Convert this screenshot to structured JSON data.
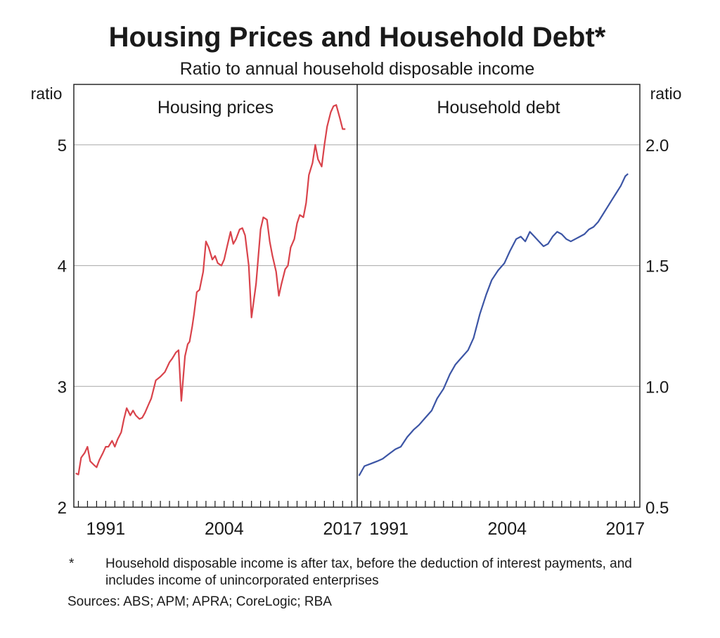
{
  "chart": {
    "title": "Housing Prices and Household Debt*",
    "subtitle": "Ratio to annual household disposable income",
    "left_unit": "ratio",
    "right_unit": "ratio"
  },
  "notes": {
    "marker": "*",
    "footnote": "Household disposable income is after tax, before the deduction of interest payments, and includes income of unincorporated enterprises",
    "sources": "Sources: ABS; APM; APRA; CoreLogic; RBA"
  },
  "chart_data": [
    {
      "type": "line",
      "panel_title": "Housing prices",
      "axis_label": "ratio",
      "axis_side": "left",
      "ylim": [
        2,
        5.5
      ],
      "yticks": [
        2,
        3,
        4,
        5
      ],
      "ytick_labels": [
        "2",
        "3",
        "4",
        "5"
      ],
      "xlim": [
        1987.5,
        2018.6
      ],
      "xtick_values": [
        1991,
        2004,
        2017
      ],
      "xtick_labels": [
        "1991",
        "2004",
        "2017"
      ],
      "grid": true,
      "color": "#d9434b",
      "x": [
        1987.7,
        1988.0,
        1988.3,
        1988.7,
        1989.0,
        1989.3,
        1989.7,
        1990.0,
        1990.3,
        1990.7,
        1991.0,
        1991.3,
        1991.7,
        1992.0,
        1992.3,
        1992.7,
        1993.0,
        1993.3,
        1993.7,
        1994.0,
        1994.3,
        1994.7,
        1995.0,
        1995.3,
        1995.7,
        1996.0,
        1996.5,
        1997.0,
        1997.5,
        1998.0,
        1998.3,
        1998.7,
        1999.0,
        1999.3,
        1999.7,
        2000.0,
        2000.2,
        2000.5,
        2000.7,
        2001.0,
        2001.3,
        2001.7,
        2002.0,
        2002.3,
        2002.7,
        2003.0,
        2003.3,
        2003.7,
        2004.0,
        2004.3,
        2004.7,
        2005.0,
        2005.3,
        2005.7,
        2006.0,
        2006.3,
        2006.7,
        2007.0,
        2007.5,
        2008.0,
        2008.3,
        2008.7,
        2009.0,
        2009.3,
        2009.7,
        2010.0,
        2010.3,
        2010.7,
        2011.0,
        2011.3,
        2011.7,
        2012.0,
        2012.3,
        2012.7,
        2013.0,
        2013.3,
        2013.7,
        2014.0,
        2014.3,
        2014.7,
        2015.0,
        2015.3,
        2015.7,
        2016.0,
        2016.3,
        2016.7,
        2017.0,
        2017.3
      ],
      "y": [
        2.28,
        2.27,
        2.41,
        2.45,
        2.5,
        2.38,
        2.35,
        2.33,
        2.39,
        2.45,
        2.5,
        2.5,
        2.55,
        2.5,
        2.56,
        2.62,
        2.73,
        2.82,
        2.76,
        2.8,
        2.76,
        2.73,
        2.74,
        2.78,
        2.85,
        2.9,
        3.05,
        3.08,
        3.12,
        3.2,
        3.23,
        3.28,
        3.3,
        2.88,
        3.25,
        3.35,
        3.37,
        3.5,
        3.6,
        3.78,
        3.8,
        3.95,
        4.2,
        4.15,
        4.05,
        4.08,
        4.02,
        4.0,
        4.05,
        4.15,
        4.28,
        4.18,
        4.22,
        4.3,
        4.31,
        4.25,
        4.0,
        3.57,
        3.85,
        4.3,
        4.4,
        4.38,
        4.2,
        4.08,
        3.95,
        3.75,
        3.85,
        3.97,
        4.0,
        4.15,
        4.22,
        4.35,
        4.42,
        4.4,
        4.52,
        4.75,
        4.85,
        5.0,
        4.88,
        4.82,
        5.0,
        5.15,
        5.27,
        5.32,
        5.33,
        5.22,
        5.13,
        5.13
      ]
    },
    {
      "type": "line",
      "panel_title": "Household debt",
      "axis_label": "ratio",
      "axis_side": "right",
      "ylim": [
        0.5,
        2.25
      ],
      "yticks": [
        0.5,
        1.0,
        1.5,
        2.0
      ],
      "ytick_labels": [
        "0.5",
        "1.0",
        "1.5",
        "2.0"
      ],
      "xlim": [
        1987.5,
        2018.6
      ],
      "xtick_values": [
        1991,
        2004,
        2017
      ],
      "xtick_labels": [
        "1991",
        "2004",
        "2017"
      ],
      "grid": true,
      "color": "#3c55a5",
      "x": [
        1987.7,
        1988.3,
        1989.0,
        1989.7,
        1990.3,
        1991.0,
        1991.7,
        1992.3,
        1993.0,
        1993.7,
        1994.3,
        1995.0,
        1995.7,
        1996.3,
        1997.0,
        1997.7,
        1998.3,
        1999.0,
        1999.7,
        2000.3,
        2001.0,
        2001.7,
        2002.3,
        2003.0,
        2003.7,
        2004.3,
        2005.0,
        2005.5,
        2006.0,
        2006.5,
        2007.0,
        2007.5,
        2008.0,
        2008.5,
        2009.0,
        2009.5,
        2010.0,
        2010.5,
        2011.0,
        2011.5,
        2012.0,
        2012.5,
        2013.0,
        2013.5,
        2014.0,
        2014.5,
        2015.0,
        2015.5,
        2016.0,
        2016.5,
        2017.0,
        2017.3
      ],
      "y": [
        0.63,
        0.67,
        0.68,
        0.69,
        0.7,
        0.72,
        0.74,
        0.75,
        0.79,
        0.82,
        0.84,
        0.87,
        0.9,
        0.95,
        0.99,
        1.05,
        1.09,
        1.12,
        1.15,
        1.2,
        1.3,
        1.38,
        1.44,
        1.48,
        1.51,
        1.56,
        1.61,
        1.62,
        1.6,
        1.64,
        1.62,
        1.6,
        1.58,
        1.59,
        1.62,
        1.64,
        1.63,
        1.61,
        1.6,
        1.61,
        1.62,
        1.63,
        1.65,
        1.66,
        1.68,
        1.71,
        1.74,
        1.77,
        1.8,
        1.83,
        1.87,
        1.88
      ]
    }
  ]
}
